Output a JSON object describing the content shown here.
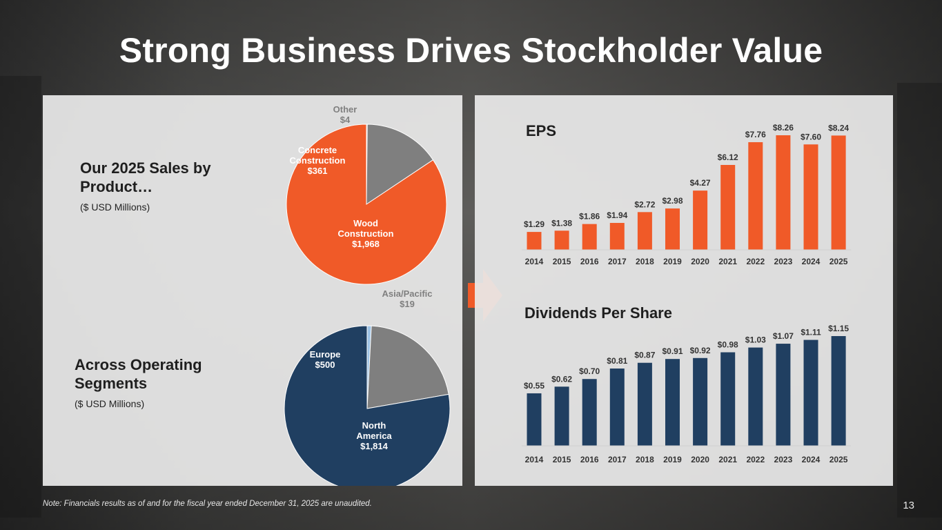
{
  "slide": {
    "title": "Strong Business Drives Stockholder Value",
    "note": "Note: Financials results as of and for the fiscal year ended December 31,  2025 are unaudited.",
    "page_number": "13"
  },
  "left": {
    "sales_heading_line1": "Our 2025 Sales by",
    "sales_heading_line2": "Product…",
    "sales_sub": "($ USD Millions)",
    "segments_heading_line1": "Across Operating",
    "segments_heading_line2": "Segments",
    "segments_sub": "($ USD Millions)"
  },
  "right": {
    "eps_title": "EPS",
    "dps_title": "Dividends Per Share"
  },
  "colors": {
    "orange": "#F05A28",
    "gray": "#7F7F7F",
    "navy": "#203F61",
    "light_blue": "#9DC3E6",
    "dark": "#2E2E2E"
  },
  "chart_data": [
    {
      "type": "pie",
      "title": "Our 2025 Sales by Product…",
      "unit": "$ USD Millions",
      "slices": [
        {
          "name": "Wood Construction",
          "label_lines": [
            "Wood",
            "Construction",
            "$1,968"
          ],
          "value": 1968,
          "color": "#F05A28"
        },
        {
          "name": "Concrete Construction",
          "label_lines": [
            "Concrete",
            "Construction",
            "$361"
          ],
          "value": 361,
          "color": "#7F7F7F"
        },
        {
          "name": "Other",
          "label_lines": [
            "Other",
            "$4"
          ],
          "value": 4,
          "color": "#2E2E2E"
        }
      ]
    },
    {
      "type": "pie",
      "title": "Across Operating Segments",
      "unit": "$ USD Millions",
      "slices": [
        {
          "name": "North America",
          "label_lines": [
            "North",
            "America",
            "$1,814"
          ],
          "value": 1814,
          "color": "#203F61"
        },
        {
          "name": "Europe",
          "label_lines": [
            "Europe",
            "$500"
          ],
          "value": 500,
          "color": "#7F7F7F"
        },
        {
          "name": "Asia/Pacific",
          "label_lines": [
            "Asia/Pacific",
            "$19"
          ],
          "value": 19,
          "color": "#9DC3E6"
        }
      ]
    },
    {
      "type": "bar",
      "title": "EPS",
      "categories": [
        "2014",
        "2015",
        "2016",
        "2017",
        "2018",
        "2019",
        "2020",
        "2021",
        "2022",
        "2023",
        "2024",
        "2025"
      ],
      "values": [
        1.29,
        1.38,
        1.86,
        1.94,
        2.72,
        2.98,
        4.27,
        6.12,
        7.76,
        8.26,
        7.6,
        8.24
      ],
      "labels": [
        "$1.29",
        "$1.38",
        "$1.86",
        "$1.94",
        "$2.72",
        "$2.98",
        "$4.27",
        "$6.12",
        "$7.76",
        "$8.26",
        "$7.60",
        "$8.24"
      ],
      "color": "#F05A28",
      "ylim": [
        0,
        8.26
      ]
    },
    {
      "type": "bar",
      "title": "Dividends Per Share",
      "categories": [
        "2014",
        "2015",
        "2016",
        "2017",
        "2018",
        "2019",
        "2020",
        "2021",
        "2022",
        "2023",
        "2024",
        "2025"
      ],
      "values": [
        0.55,
        0.62,
        0.7,
        0.81,
        0.87,
        0.91,
        0.92,
        0.98,
        1.03,
        1.07,
        1.11,
        1.15
      ],
      "labels": [
        "$0.55",
        "$0.62",
        "$0.70",
        "$0.81",
        "$0.87",
        "$0.91",
        "$0.92",
        "$0.98",
        "$1.03",
        "$1.07",
        "$1.11",
        "$1.15"
      ],
      "color": "#203F61",
      "ylim": [
        0,
        1.15
      ]
    }
  ]
}
